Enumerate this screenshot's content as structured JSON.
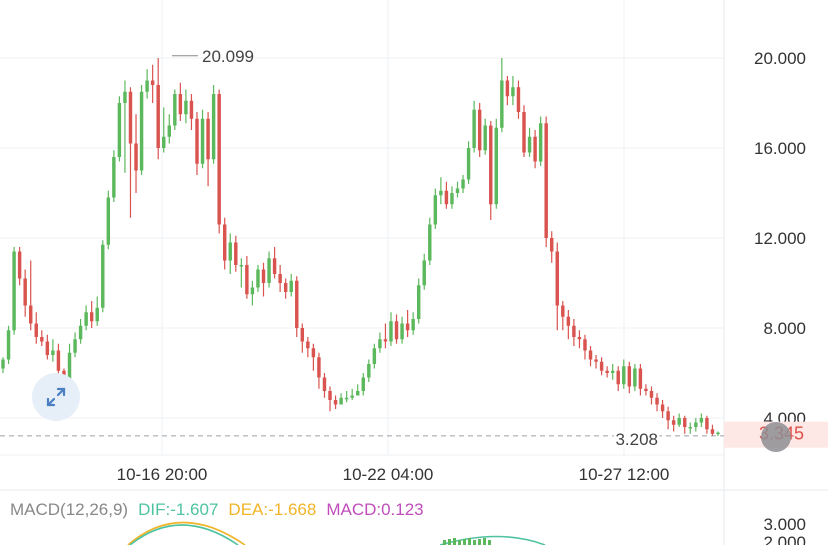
{
  "colors": {
    "up": "#5cb85c",
    "down": "#d9534f",
    "grid": "#eef0f3",
    "text": "#444444",
    "axis_text": "#333333",
    "dash": "#9aa0a6",
    "dif": "#4fc3a1",
    "dea": "#f0b429",
    "macd": "#c04dbb",
    "last_price_bg": "#fde8e6",
    "last_price_text": "#e0504a"
  },
  "price_labels": {
    "high": "20.099",
    "low_line": "3.208",
    "last": "3.345"
  },
  "macd_legend": {
    "name": "MACD(12,26,9)",
    "dif": "DIF:-1.607",
    "dea": "DEA:-1.668",
    "macd": "MACD:0.123"
  },
  "icons": {
    "expand": "expand-arrows-icon",
    "handle": "drag-handle-icon"
  },
  "chart_data": {
    "type": "candlestick",
    "y_axis": {
      "ticks": [
        "20.000",
        "16.000",
        "12.000",
        "8.000",
        "4.000"
      ],
      "range": [
        3.0,
        20.1
      ],
      "position": "right"
    },
    "x_axis": {
      "ticks": [
        "10-16 20:00",
        "10-22 04:00",
        "10-27 12:00"
      ]
    },
    "macd_axis": {
      "ticks": [
        "3.000",
        "2.000"
      ]
    },
    "grid": true,
    "high_marker": 20.099,
    "reference_line": 3.208,
    "last_price": 3.345,
    "candles": [
      [
        6.2,
        6.6,
        6.0,
        6.7
      ],
      [
        6.6,
        7.9,
        6.4,
        8.1
      ],
      [
        7.9,
        11.4,
        7.7,
        11.6
      ],
      [
        11.4,
        10.2,
        9.9,
        11.6
      ],
      [
        10.2,
        9.0,
        8.5,
        10.6
      ],
      [
        9.0,
        8.2,
        7.9,
        11.0
      ],
      [
        8.2,
        7.6,
        7.3,
        8.7
      ],
      [
        7.6,
        7.4,
        7.2,
        7.9
      ],
      [
        7.4,
        6.8,
        6.6,
        7.7
      ],
      [
        6.8,
        7.0,
        6.5,
        7.5
      ],
      [
        7.0,
        6.1,
        5.6,
        7.3
      ],
      [
        6.1,
        5.7,
        5.2,
        6.2
      ],
      [
        5.7,
        6.9,
        5.6,
        7.3
      ],
      [
        6.9,
        7.5,
        6.7,
        7.8
      ],
      [
        7.5,
        8.1,
        7.3,
        8.4
      ],
      [
        8.1,
        8.7,
        7.9,
        9.0
      ],
      [
        8.7,
        8.3,
        8.0,
        9.2
      ],
      [
        8.3,
        8.9,
        8.1,
        9.4
      ],
      [
        8.9,
        11.7,
        8.7,
        11.9
      ],
      [
        11.7,
        13.8,
        11.5,
        14.1
      ],
      [
        13.8,
        15.6,
        13.6,
        15.9
      ],
      [
        15.6,
        18.0,
        15.4,
        18.3
      ],
      [
        18.0,
        18.5,
        14.9,
        19.0
      ],
      [
        18.5,
        16.2,
        12.9,
        18.7
      ],
      [
        16.2,
        15.0,
        14.0,
        17.5
      ],
      [
        15.0,
        18.5,
        14.8,
        18.8
      ],
      [
        18.5,
        19.0,
        18.2,
        19.5
      ],
      [
        19.0,
        18.8,
        18.0,
        19.7
      ],
      [
        18.8,
        16.0,
        15.5,
        20.0
      ],
      [
        16.0,
        16.5,
        15.8,
        17.8
      ],
      [
        16.5,
        17.0,
        16.2,
        17.5
      ],
      [
        17.0,
        18.4,
        16.8,
        18.6
      ],
      [
        18.4,
        17.5,
        17.2,
        18.9
      ],
      [
        17.5,
        18.1,
        17.1,
        18.6
      ],
      [
        18.1,
        17.3,
        16.8,
        18.4
      ],
      [
        17.3,
        15.3,
        14.8,
        17.6
      ],
      [
        15.3,
        17.3,
        15.1,
        17.7
      ],
      [
        17.3,
        15.5,
        14.3,
        17.6
      ],
      [
        15.5,
        18.4,
        15.3,
        18.8
      ],
      [
        18.4,
        12.6,
        12.2,
        18.6
      ],
      [
        12.6,
        11.0,
        10.6,
        12.9
      ],
      [
        11.0,
        11.8,
        10.4,
        12.2
      ],
      [
        11.8,
        10.8,
        10.5,
        12.1
      ],
      [
        10.8,
        10.8,
        9.8,
        11.1
      ],
      [
        10.8,
        9.5,
        9.3,
        11.2
      ],
      [
        9.5,
        9.8,
        9.0,
        10.1
      ],
      [
        9.8,
        10.6,
        9.6,
        10.8
      ],
      [
        10.6,
        10.0,
        9.4,
        10.9
      ],
      [
        10.0,
        11.1,
        9.8,
        11.4
      ],
      [
        11.1,
        10.4,
        10.2,
        11.6
      ],
      [
        10.4,
        10.0,
        9.6,
        10.8
      ],
      [
        10.0,
        9.6,
        9.3,
        10.2
      ],
      [
        9.6,
        10.1,
        9.4,
        10.4
      ],
      [
        10.1,
        8.0,
        7.6,
        10.3
      ],
      [
        8.0,
        7.4,
        6.9,
        8.2
      ],
      [
        7.4,
        7.1,
        6.7,
        7.6
      ],
      [
        7.1,
        6.7,
        6.1,
        7.3
      ],
      [
        6.7,
        5.8,
        5.3,
        6.9
      ],
      [
        5.8,
        5.2,
        4.9,
        6.0
      ],
      [
        5.2,
        4.8,
        4.3,
        5.4
      ],
      [
        4.8,
        4.6,
        4.4,
        5.0
      ],
      [
        4.6,
        4.9,
        4.7,
        5.1
      ],
      [
        4.9,
        4.9,
        4.7,
        5.2
      ],
      [
        4.9,
        5.0,
        4.8,
        5.3
      ],
      [
        5.0,
        5.2,
        5.0,
        5.5
      ],
      [
        5.2,
        5.8,
        5.0,
        6.0
      ],
      [
        5.8,
        6.4,
        5.6,
        6.6
      ],
      [
        6.4,
        7.1,
        6.2,
        7.3
      ],
      [
        7.1,
        7.5,
        6.9,
        7.8
      ],
      [
        7.5,
        7.4,
        7.1,
        8.2
      ],
      [
        7.4,
        8.3,
        7.2,
        8.7
      ],
      [
        8.3,
        7.5,
        7.3,
        8.6
      ],
      [
        7.5,
        8.2,
        7.3,
        8.5
      ],
      [
        8.2,
        7.9,
        7.6,
        8.8
      ],
      [
        7.9,
        8.4,
        7.7,
        8.7
      ],
      [
        8.4,
        9.9,
        8.2,
        10.2
      ],
      [
        9.9,
        11.0,
        9.7,
        11.3
      ],
      [
        11.0,
        12.6,
        10.8,
        12.9
      ],
      [
        12.6,
        13.9,
        12.4,
        14.2
      ],
      [
        13.9,
        14.1,
        13.5,
        14.7
      ],
      [
        14.1,
        13.5,
        13.3,
        14.5
      ],
      [
        13.5,
        14.0,
        13.3,
        14.3
      ],
      [
        14.0,
        14.2,
        13.8,
        14.5
      ],
      [
        14.2,
        14.6,
        14.0,
        14.8
      ],
      [
        14.6,
        16.0,
        14.4,
        16.3
      ],
      [
        16.0,
        17.7,
        15.8,
        18.1
      ],
      [
        17.7,
        15.9,
        15.6,
        18.0
      ],
      [
        15.9,
        17.0,
        15.7,
        17.3
      ],
      [
        17.0,
        13.5,
        12.8,
        17.2
      ],
      [
        13.5,
        16.9,
        13.3,
        17.3
      ],
      [
        16.9,
        19.0,
        16.7,
        20.0
      ],
      [
        19.0,
        18.3,
        17.9,
        19.2
      ],
      [
        18.3,
        18.7,
        17.9,
        19.2
      ],
      [
        18.7,
        17.6,
        17.3,
        19.0
      ],
      [
        17.6,
        15.8,
        15.6,
        17.9
      ],
      [
        15.8,
        16.5,
        15.6,
        16.9
      ],
      [
        16.5,
        15.4,
        15.1,
        16.8
      ],
      [
        15.4,
        17.1,
        15.2,
        17.4
      ],
      [
        17.1,
        12.0,
        11.6,
        17.4
      ],
      [
        12.0,
        11.4,
        10.9,
        12.3
      ],
      [
        11.4,
        9.0,
        7.9,
        11.8
      ],
      [
        9.0,
        8.5,
        7.9,
        9.2
      ],
      [
        8.5,
        8.1,
        7.5,
        8.8
      ],
      [
        8.1,
        7.6,
        7.2,
        8.4
      ],
      [
        7.6,
        7.5,
        7.1,
        7.9
      ],
      [
        7.5,
        7.0,
        6.6,
        7.7
      ],
      [
        7.0,
        6.6,
        6.3,
        7.2
      ],
      [
        6.6,
        6.5,
        6.2,
        6.8
      ],
      [
        6.5,
        6.1,
        5.9,
        6.7
      ],
      [
        6.1,
        6.0,
        5.8,
        6.3
      ],
      [
        6.0,
        6.1,
        5.7,
        6.4
      ],
      [
        6.1,
        5.5,
        5.2,
        6.3
      ],
      [
        5.5,
        6.3,
        5.3,
        6.6
      ],
      [
        6.3,
        5.4,
        5.1,
        6.5
      ],
      [
        5.4,
        6.2,
        5.2,
        6.4
      ],
      [
        6.2,
        5.3,
        5.0,
        6.4
      ],
      [
        5.3,
        5.2,
        5.0,
        5.5
      ],
      [
        5.2,
        4.9,
        4.6,
        5.4
      ],
      [
        4.9,
        4.6,
        4.3,
        5.1
      ],
      [
        4.6,
        4.3,
        4.0,
        4.8
      ],
      [
        4.3,
        3.9,
        3.5,
        4.5
      ],
      [
        3.9,
        3.7,
        3.4,
        4.1
      ],
      [
        3.7,
        4.0,
        3.6,
        4.2
      ],
      [
        4.0,
        3.6,
        3.3,
        4.1
      ],
      [
        3.6,
        3.6,
        3.3,
        3.8
      ],
      [
        3.6,
        3.8,
        3.4,
        4.0
      ],
      [
        3.8,
        4.0,
        3.6,
        4.2
      ],
      [
        4.0,
        3.5,
        3.3,
        4.1
      ],
      [
        3.5,
        3.3,
        3.2,
        3.7
      ],
      [
        3.3,
        3.35,
        3.2,
        3.4
      ]
    ]
  }
}
